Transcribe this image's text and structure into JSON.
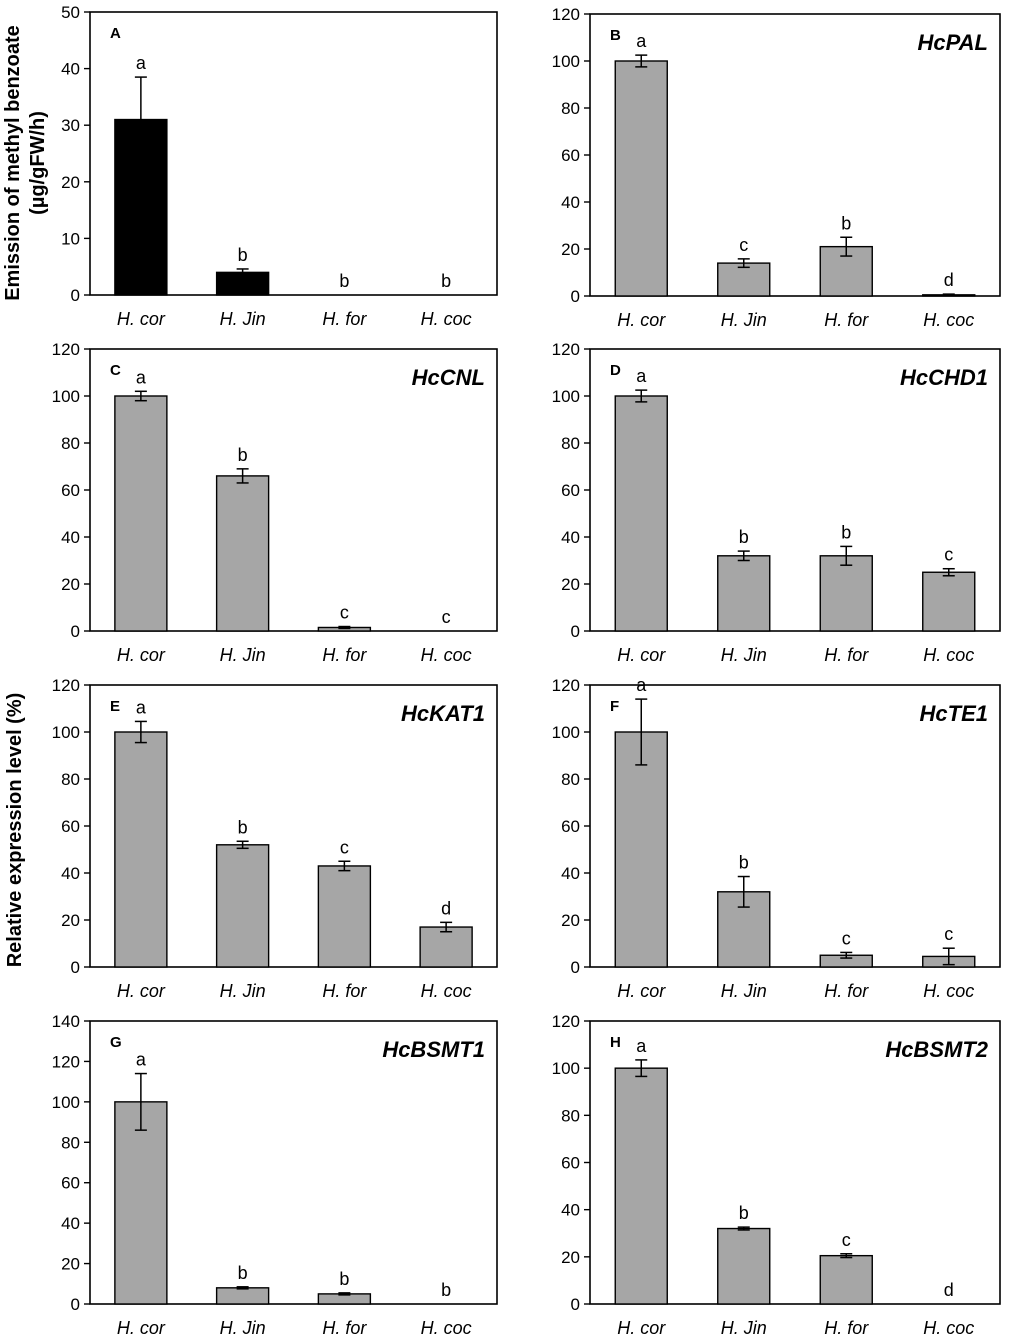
{
  "y_axis_label_top": "Emission of methyl benzoate",
  "y_axis_label_top_unit": "(µg/gFW/h)",
  "y_axis_label_main": "Relative expression level (%)",
  "colors": {
    "black_bar": "#000000",
    "gray_bar": "#a6a6a6",
    "axis": "#000000"
  },
  "chart_data": [
    {
      "type": "bar",
      "panel": "A",
      "title": "",
      "categories": [
        "H. cor",
        "H. Jin",
        "H. for",
        "H. coc"
      ],
      "values": [
        31,
        4,
        0,
        0
      ],
      "errors": [
        7.5,
        0.6,
        0,
        0
      ],
      "letters": [
        "a",
        "b",
        "b",
        "b"
      ],
      "ylim": [
        0,
        50
      ],
      "yticks": [
        0,
        10,
        20,
        30,
        40,
        50
      ],
      "bar_color": "black"
    },
    {
      "type": "bar",
      "panel": "B",
      "title": "HcPAL",
      "categories": [
        "H. cor",
        "H. Jin",
        "H. for",
        "H. coc"
      ],
      "values": [
        100,
        14,
        21,
        0.5
      ],
      "errors": [
        2.5,
        1.8,
        4,
        0.3
      ],
      "letters": [
        "a",
        "c",
        "b",
        "d"
      ],
      "ylim": [
        0,
        120
      ],
      "yticks": [
        0,
        20,
        40,
        60,
        80,
        100,
        120
      ],
      "bar_color": "gray"
    },
    {
      "type": "bar",
      "panel": "C",
      "title": "HcCNL",
      "categories": [
        "H. cor",
        "H. Jin",
        "H. for",
        "H. coc"
      ],
      "values": [
        100,
        66,
        1.5,
        0
      ],
      "errors": [
        2,
        3,
        0.4,
        0
      ],
      "letters": [
        "a",
        "b",
        "c",
        "c"
      ],
      "ylim": [
        0,
        120
      ],
      "yticks": [
        0,
        20,
        40,
        60,
        80,
        100,
        120
      ],
      "bar_color": "gray"
    },
    {
      "type": "bar",
      "panel": "D",
      "title": "HcCHD1",
      "categories": [
        "H. cor",
        "H. Jin",
        "H. for",
        "H. coc"
      ],
      "values": [
        100,
        32,
        32,
        25
      ],
      "errors": [
        2.5,
        2,
        4,
        1.5
      ],
      "letters": [
        "a",
        "b",
        "b",
        "c"
      ],
      "ylim": [
        0,
        120
      ],
      "yticks": [
        0,
        20,
        40,
        60,
        80,
        100,
        120
      ],
      "bar_color": "gray"
    },
    {
      "type": "bar",
      "panel": "E",
      "title": "HcKAT1",
      "categories": [
        "H. cor",
        "H. Jin",
        "H. for",
        "H. coc"
      ],
      "values": [
        100,
        52,
        43,
        17
      ],
      "errors": [
        4.5,
        1.5,
        2,
        2
      ],
      "letters": [
        "a",
        "b",
        "c",
        "d"
      ],
      "ylim": [
        0,
        120
      ],
      "yticks": [
        0,
        20,
        40,
        60,
        80,
        100,
        120
      ],
      "bar_color": "gray"
    },
    {
      "type": "bar",
      "panel": "F",
      "title": "HcTE1",
      "categories": [
        "H. cor",
        "H. Jin",
        "H. for",
        "H. coc"
      ],
      "values": [
        100,
        32,
        5,
        4.5
      ],
      "errors": [
        14,
        6.5,
        1.2,
        3.5
      ],
      "letters": [
        "a",
        "b",
        "c",
        "c"
      ],
      "ylim": [
        0,
        120
      ],
      "yticks": [
        0,
        20,
        40,
        60,
        80,
        100,
        120
      ],
      "bar_color": "gray"
    },
    {
      "type": "bar",
      "panel": "G",
      "title": "HcBSMT1",
      "categories": [
        "H. cor",
        "H. Jin",
        "H. for",
        "H. coc"
      ],
      "values": [
        100,
        8,
        5,
        0
      ],
      "errors": [
        14,
        0.5,
        0.5,
        0
      ],
      "letters": [
        "a",
        "b",
        "b",
        "b"
      ],
      "ylim": [
        0,
        140
      ],
      "yticks": [
        0,
        20,
        40,
        60,
        80,
        100,
        120,
        140
      ],
      "bar_color": "gray"
    },
    {
      "type": "bar",
      "panel": "H",
      "title": "HcBSMT2",
      "categories": [
        "H. cor",
        "H. Jin",
        "H. for",
        "H. coc"
      ],
      "values": [
        100,
        32,
        20.5,
        0
      ],
      "errors": [
        3.5,
        0.6,
        0.8,
        0
      ],
      "letters": [
        "a",
        "b",
        "c",
        "d"
      ],
      "ylim": [
        0,
        120
      ],
      "yticks": [
        0,
        20,
        40,
        60,
        80,
        100,
        120
      ],
      "bar_color": "gray"
    }
  ]
}
